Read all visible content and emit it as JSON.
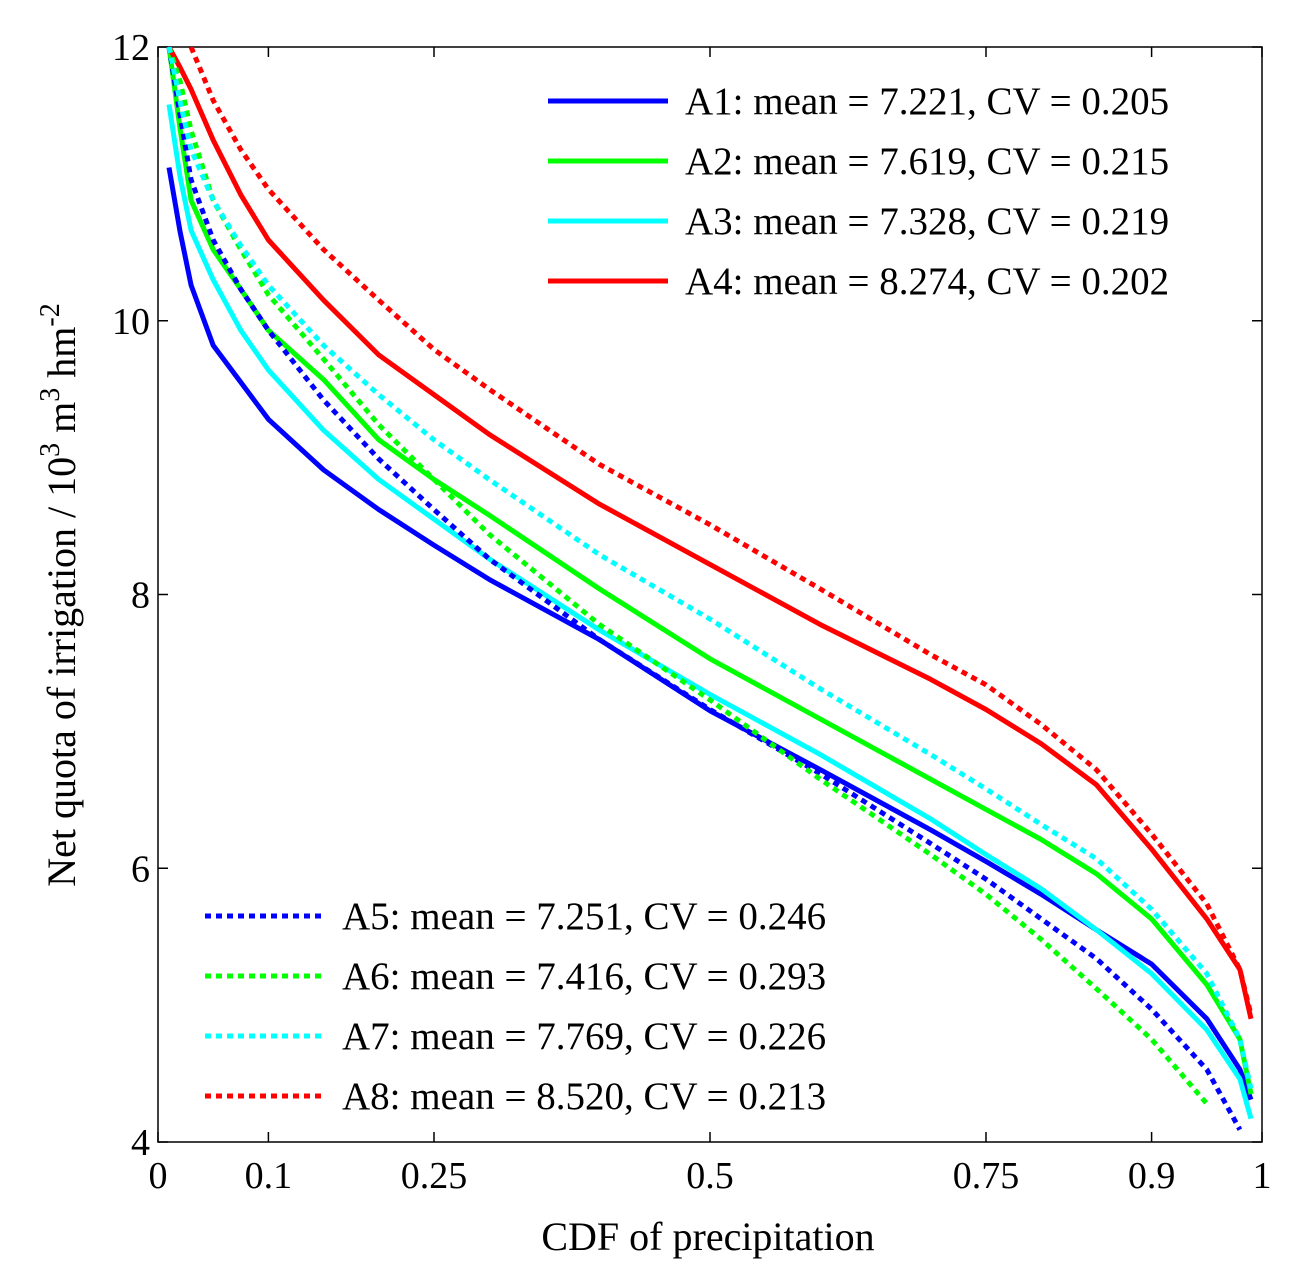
{
  "chart_data": {
    "type": "line",
    "x_label": "CDF of precipitation",
    "y_label": [
      "Net quota of irrigation / 10",
      "3",
      " m",
      "3",
      " hm",
      "-2"
    ],
    "x": [
      0.01,
      0.02,
      0.03,
      0.05,
      0.075,
      0.1,
      0.15,
      0.2,
      0.25,
      0.3,
      0.4,
      0.5,
      0.6,
      0.7,
      0.75,
      0.8,
      0.85,
      0.9,
      0.95,
      0.98,
      0.99
    ],
    "xlim": [
      0,
      1
    ],
    "xticks": [
      0,
      0.1,
      0.25,
      0.5,
      0.75,
      0.9,
      1
    ],
    "ylim": [
      4,
      12
    ],
    "yticks": [
      4,
      6,
      8,
      10,
      12
    ],
    "grid": false,
    "legend_loc": {
      "solid": "upper right",
      "dotted": "lower left"
    },
    "series": [
      {
        "name": "A1: mean = 7.221, CV = 0.205",
        "color": "#0000ff",
        "style": "solid",
        "values": [
          11.12,
          10.65,
          10.26,
          9.82,
          9.55,
          9.28,
          8.91,
          8.62,
          8.36,
          8.11,
          7.67,
          7.15,
          6.72,
          6.28,
          6.05,
          5.81,
          5.55,
          5.3,
          4.9,
          4.53,
          4.31
        ]
      },
      {
        "name": "A2: mean = 7.619, CV = 0.215",
        "color": "#00ff00",
        "style": "solid",
        "values": [
          12.0,
          11.4,
          10.88,
          10.52,
          10.23,
          9.93,
          9.57,
          9.13,
          8.84,
          8.58,
          8.04,
          7.53,
          7.09,
          6.65,
          6.43,
          6.21,
          5.96,
          5.63,
          5.15,
          4.75,
          4.35
        ]
      },
      {
        "name": "A3: mean = 7.328, CV = 0.219",
        "color": "#00ffff",
        "style": "solid",
        "values": [
          11.58,
          11.05,
          10.66,
          10.3,
          9.93,
          9.64,
          9.2,
          8.84,
          8.55,
          8.26,
          7.74,
          7.27,
          6.83,
          6.36,
          6.1,
          5.85,
          5.55,
          5.23,
          4.82,
          4.46,
          4.17
        ]
      },
      {
        "name": "A4: mean = 8.274, CV = 0.202",
        "color": "#ff0000",
        "style": "solid",
        "values": [
          12.0,
          11.85,
          11.69,
          11.32,
          10.92,
          10.59,
          10.15,
          9.75,
          9.46,
          9.17,
          8.66,
          8.22,
          7.78,
          7.38,
          7.16,
          6.91,
          6.61,
          6.14,
          5.63,
          5.26,
          4.9
        ]
      },
      {
        "name": "A5: mean = 7.251, CV = 0.246",
        "color": "#0000ff",
        "style": "dotted",
        "values": [
          12.0,
          11.5,
          11.03,
          10.59,
          10.23,
          9.93,
          9.42,
          8.99,
          8.62,
          8.26,
          7.67,
          7.16,
          6.69,
          6.18,
          5.92,
          5.63,
          5.34,
          4.97,
          4.53,
          4.09,
          null
        ]
      },
      {
        "name": "A6: mean = 7.416, CV = 0.293",
        "color": "#00ff00",
        "style": "dotted",
        "values": [
          12.0,
          11.75,
          11.39,
          10.88,
          10.52,
          10.19,
          9.72,
          9.24,
          8.84,
          8.44,
          7.78,
          7.23,
          6.65,
          6.1,
          5.81,
          5.48,
          5.12,
          4.75,
          4.28,
          null,
          null
        ]
      },
      {
        "name": "A7: mean = 7.769, CV = 0.226",
        "color": "#00ffff",
        "style": "dotted",
        "values": [
          12.0,
          11.6,
          11.25,
          10.88,
          10.55,
          10.26,
          9.82,
          9.46,
          9.13,
          8.84,
          8.29,
          7.82,
          7.31,
          6.83,
          6.58,
          6.32,
          6.07,
          5.7,
          5.23,
          4.75,
          4.39
        ]
      },
      {
        "name": "A8: mean = 8.520, CV = 0.213",
        "color": "#ff0000",
        "style": "dotted",
        "values": [
          null,
          null,
          12.0,
          11.61,
          11.25,
          10.96,
          10.52,
          10.15,
          9.79,
          9.5,
          8.95,
          8.51,
          8.04,
          7.56,
          7.34,
          7.05,
          6.72,
          6.25,
          5.74,
          5.26,
          4.93
        ]
      }
    ]
  }
}
